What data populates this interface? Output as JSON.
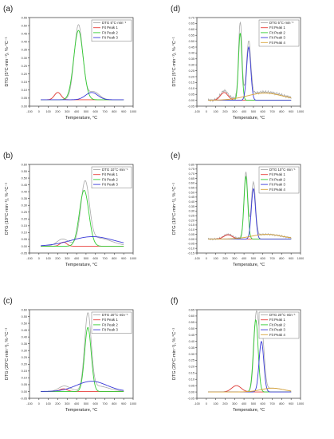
{
  "figure": {
    "colors": {
      "dtg": "#aaaaaa",
      "fit1": "#e8413c",
      "fit2": "#33cc33",
      "fit3": "#3a3ad8",
      "fit4": "#d9a43a",
      "axis": "#333333"
    }
  },
  "chart_data": [
    {
      "panel": "(a)",
      "type": "line",
      "xlabel": "Temperature, °C",
      "ylabel": "DTG (5°C·min⁻¹), %·°C⁻¹",
      "xlim": [
        -100,
        1000
      ],
      "ylim": [
        0,
        0.55
      ],
      "xticks": [
        "-100",
        "0",
        "100",
        "200",
        "300",
        "400",
        "500",
        "600",
        "700",
        "800",
        "900",
        "1000"
      ],
      "yticks": [
        "0.00",
        "0.05",
        "0.10",
        "0.15",
        "0.20",
        "0.25",
        "0.30",
        "0.35",
        "0.40",
        "0.45",
        "0.50",
        "0.55"
      ],
      "legend_position": "top-right",
      "baseline": 0.04,
      "series": [
        {
          "name": "DTG 5°C·min⁻¹",
          "role": "dtg",
          "baseline": 0.04,
          "peaks": [
            {
              "center": 200,
              "height": 0.045,
              "sigma": 35
            },
            {
              "center": 420,
              "height": 0.465,
              "sigma": 45
            },
            {
              "center": 580,
              "height": 0.05,
              "sigma": 60
            }
          ]
        },
        {
          "name": "Fit Peak 1",
          "role": "fit1",
          "baseline": 0.04,
          "peaks": [
            {
              "center": 200,
              "height": 0.045,
              "sigma": 35
            }
          ]
        },
        {
          "name": "Fit Peak 2",
          "role": "fit2",
          "baseline": 0.04,
          "peaks": [
            {
              "center": 420,
              "height": 0.43,
              "sigma": 50
            }
          ]
        },
        {
          "name": "Fit Peak 3",
          "role": "fit3",
          "baseline": 0.04,
          "peaks": [
            {
              "center": 560,
              "height": 0.045,
              "sigma": 65
            }
          ]
        }
      ]
    },
    {
      "panel": "(d)",
      "type": "line",
      "xlabel": "Temperature, °C",
      "ylabel": "DTG (5°C·min⁻¹), %·°C⁻¹",
      "xlim": [
        -100,
        1000
      ],
      "ylim": [
        -0.05,
        0.7
      ],
      "xticks": [
        "-100",
        "0",
        "100",
        "200",
        "300",
        "400",
        "500",
        "600",
        "700",
        "800",
        "900",
        "1000"
      ],
      "yticks": [
        "-0.05",
        "0.00",
        "0.05",
        "0.10",
        "0.15",
        "0.20",
        "0.25",
        "0.30",
        "0.35",
        "0.40",
        "0.45",
        "0.50",
        "0.55",
        "0.60",
        "0.65",
        "0.70"
      ],
      "legend_position": "top-right",
      "baseline": 0.0,
      "series": [
        {
          "name": "DTG 5°C·min⁻¹",
          "role": "dtg",
          "baseline": 0.0,
          "noise": 0.012,
          "peaks": [
            {
              "center": 190,
              "height": 0.075,
              "sigma": 40
            },
            {
              "center": 360,
              "height": 0.64,
              "sigma": 18
            },
            {
              "center": 450,
              "height": 0.46,
              "sigma": 22
            },
            {
              "center": 620,
              "height": 0.07,
              "sigma": 190
            }
          ]
        },
        {
          "name": "Fit Peak 1",
          "role": "fit1",
          "baseline": 0.0,
          "peaks": [
            {
              "center": 190,
              "height": 0.065,
              "sigma": 40
            }
          ]
        },
        {
          "name": "Fit Peak 2",
          "role": "fit2",
          "baseline": 0.0,
          "peaks": [
            {
              "center": 360,
              "height": 0.57,
              "sigma": 18
            }
          ]
        },
        {
          "name": "Fit Peak 3",
          "role": "fit3",
          "baseline": 0.0,
          "peaks": [
            {
              "center": 450,
              "height": 0.45,
              "sigma": 22
            }
          ]
        },
        {
          "name": "Fit Peak 4",
          "role": "fit4",
          "baseline": 0.0,
          "peaks": [
            {
              "center": 620,
              "height": 0.06,
              "sigma": 190
            }
          ]
        }
      ]
    },
    {
      "panel": "(b)",
      "type": "line",
      "xlabel": "Temperature, °C",
      "ylabel": "DTG (10°C·min⁻¹), %·°C⁻¹",
      "xlim": [
        -100,
        1000
      ],
      "ylim": [
        -0.05,
        0.6
      ],
      "xticks": [
        "-100",
        "0",
        "100",
        "200",
        "300",
        "400",
        "500",
        "600",
        "700",
        "800",
        "900",
        "1000"
      ],
      "yticks": [
        "-0.05",
        "0.00",
        "0.05",
        "0.10",
        "0.15",
        "0.20",
        "0.25",
        "0.30",
        "0.35",
        "0.40",
        "0.45",
        "0.50",
        "0.55",
        "0.60"
      ],
      "legend_position": "top-right",
      "baseline": 0.0,
      "series": [
        {
          "name": "DTG 10°C·min⁻¹",
          "role": "dtg",
          "baseline": 0.0,
          "peaks": [
            {
              "center": 250,
              "height": 0.05,
              "sigma": 60
            },
            {
              "center": 490,
              "height": 0.44,
              "sigma": 45
            },
            {
              "center": 620,
              "height": 0.06,
              "sigma": 150
            }
          ]
        },
        {
          "name": "Fit Peak 1",
          "role": "fit1",
          "baseline": 0.0,
          "peaks": [
            {
              "center": 260,
              "height": 0.03,
              "sigma": 35
            }
          ]
        },
        {
          "name": "Fit Peak 2",
          "role": "fit2",
          "baseline": 0.0,
          "peaks": [
            {
              "center": 480,
              "height": 0.41,
              "sigma": 50
            }
          ]
        },
        {
          "name": "Fit Peak 3",
          "role": "fit3",
          "baseline": 0.0,
          "peaks": [
            {
              "center": 570,
              "height": 0.07,
              "sigma": 230
            }
          ]
        }
      ]
    },
    {
      "panel": "(e)",
      "type": "line",
      "xlabel": "Temperature, °C",
      "ylabel": "DTG (10°C·min⁻¹), %·°C⁻¹",
      "xlim": [
        -100,
        1000
      ],
      "ylim": [
        -0.15,
        0.8
      ],
      "xticks": [
        "-100",
        "0",
        "100",
        "200",
        "300",
        "400",
        "500",
        "600",
        "700",
        "800",
        "900",
        "1000"
      ],
      "yticks": [
        "-0.15",
        "-0.10",
        "-0.05",
        "0.00",
        "0.05",
        "0.10",
        "0.15",
        "0.20",
        "0.25",
        "0.30",
        "0.35",
        "0.40",
        "0.45",
        "0.50",
        "0.55",
        "0.60",
        "0.65",
        "0.70",
        "0.75",
        "0.80"
      ],
      "legend_position": "top-right",
      "baseline": 0.0,
      "series": [
        {
          "name": "DTG 10°C·min⁻¹",
          "role": "dtg",
          "baseline": 0.0,
          "noise": 0.01,
          "peaks": [
            {
              "center": 230,
              "height": 0.05,
              "sigma": 45
            },
            {
              "center": 420,
              "height": 0.7,
              "sigma": 20
            },
            {
              "center": 500,
              "height": 0.58,
              "sigma": 22
            },
            {
              "center": 640,
              "height": 0.05,
              "sigma": 160
            }
          ]
        },
        {
          "name": "Fit Peak 1",
          "role": "fit1",
          "baseline": 0.0,
          "peaks": [
            {
              "center": 230,
              "height": 0.045,
              "sigma": 45
            }
          ]
        },
        {
          "name": "Fit Peak 2",
          "role": "fit2",
          "baseline": 0.0,
          "peaks": [
            {
              "center": 420,
              "height": 0.67,
              "sigma": 20
            }
          ]
        },
        {
          "name": "Fit Peak 3",
          "role": "fit3",
          "baseline": 0.0,
          "peaks": [
            {
              "center": 500,
              "height": 0.54,
              "sigma": 22
            }
          ]
        },
        {
          "name": "Fit Peak 4",
          "role": "fit4",
          "baseline": 0.0,
          "peaks": [
            {
              "center": 640,
              "height": 0.05,
              "sigma": 160
            }
          ]
        }
      ]
    },
    {
      "panel": "(c)",
      "type": "line",
      "xlabel": "Temperature, °C",
      "ylabel": "DTG (20°C·min⁻¹), %·°C⁻¹",
      "xlim": [
        -100,
        1000
      ],
      "ylim": [
        -0.05,
        0.6
      ],
      "xticks": [
        "-100",
        "0",
        "100",
        "200",
        "300",
        "400",
        "500",
        "600",
        "700",
        "800",
        "900",
        "1000"
      ],
      "yticks": [
        "-0.05",
        "0.00",
        "0.05",
        "0.10",
        "0.15",
        "0.20",
        "0.25",
        "0.30",
        "0.35",
        "0.40",
        "0.45",
        "0.50",
        "0.55",
        "0.60"
      ],
      "legend_position": "top-right",
      "baseline": 0.0,
      "series": [
        {
          "name": "DTG 20°C·min⁻¹",
          "role": "dtg",
          "baseline": 0.0,
          "peaks": [
            {
              "center": 270,
              "height": 0.04,
              "sigma": 60
            },
            {
              "center": 520,
              "height": 0.55,
              "sigma": 35
            },
            {
              "center": 620,
              "height": 0.04,
              "sigma": 120
            }
          ]
        },
        {
          "name": "Fit Peak 1",
          "role": "fit1",
          "baseline": 0.0,
          "peaks": [
            {
              "center": 260,
              "height": 0.02,
              "sigma": 40
            }
          ]
        },
        {
          "name": "Fit Peak 2",
          "role": "fit2",
          "baseline": 0.0,
          "peaks": [
            {
              "center": 520,
              "height": 0.47,
              "sigma": 35
            }
          ]
        },
        {
          "name": "Fit Peak 3",
          "role": "fit3",
          "baseline": 0.0,
          "peaks": [
            {
              "center": 560,
              "height": 0.075,
              "sigma": 160
            }
          ]
        }
      ]
    },
    {
      "panel": "(f)",
      "type": "line",
      "xlabel": "Temperature, °C",
      "ylabel": "DTG (20°C·min⁻¹), %·°C⁻¹",
      "xlim": [
        -100,
        1000
      ],
      "ylim": [
        -0.05,
        0.65
      ],
      "xticks": [
        "-100",
        "0",
        "100",
        "200",
        "300",
        "400",
        "500",
        "600",
        "700",
        "800",
        "900",
        "1000"
      ],
      "yticks": [
        "-0.05",
        "0.00",
        "0.05",
        "0.10",
        "0.15",
        "0.20",
        "0.25",
        "0.30",
        "0.35",
        "0.40",
        "0.45",
        "0.50",
        "0.55",
        "0.60",
        "0.65"
      ],
      "legend_position": "top-right",
      "baseline": 0.0,
      "series": [
        {
          "name": "DTG 20°C·min⁻¹",
          "role": "dtg",
          "baseline": 0.0,
          "peaks": [
            {
              "center": 320,
              "height": 0.05,
              "sigma": 50
            },
            {
              "center": 530,
              "height": 0.6,
              "sigma": 25
            },
            {
              "center": 590,
              "height": 0.45,
              "sigma": 25
            },
            {
              "center": 700,
              "height": 0.03,
              "sigma": 120
            }
          ]
        },
        {
          "name": "Fit Peak 1",
          "role": "fit1",
          "baseline": 0.0,
          "peaks": [
            {
              "center": 320,
              "height": 0.05,
              "sigma": 50
            }
          ]
        },
        {
          "name": "Fit Peak 2",
          "role": "fit2",
          "baseline": 0.0,
          "peaks": [
            {
              "center": 525,
              "height": 0.57,
              "sigma": 25
            }
          ]
        },
        {
          "name": "Fit Peak 3",
          "role": "fit3",
          "baseline": 0.0,
          "peaks": [
            {
              "center": 585,
              "height": 0.4,
              "sigma": 25
            }
          ]
        },
        {
          "name": "Fit Peak 4",
          "role": "fit4",
          "baseline": 0.0,
          "peaks": [
            {
              "center": 700,
              "height": 0.03,
              "sigma": 120
            }
          ]
        }
      ]
    }
  ]
}
